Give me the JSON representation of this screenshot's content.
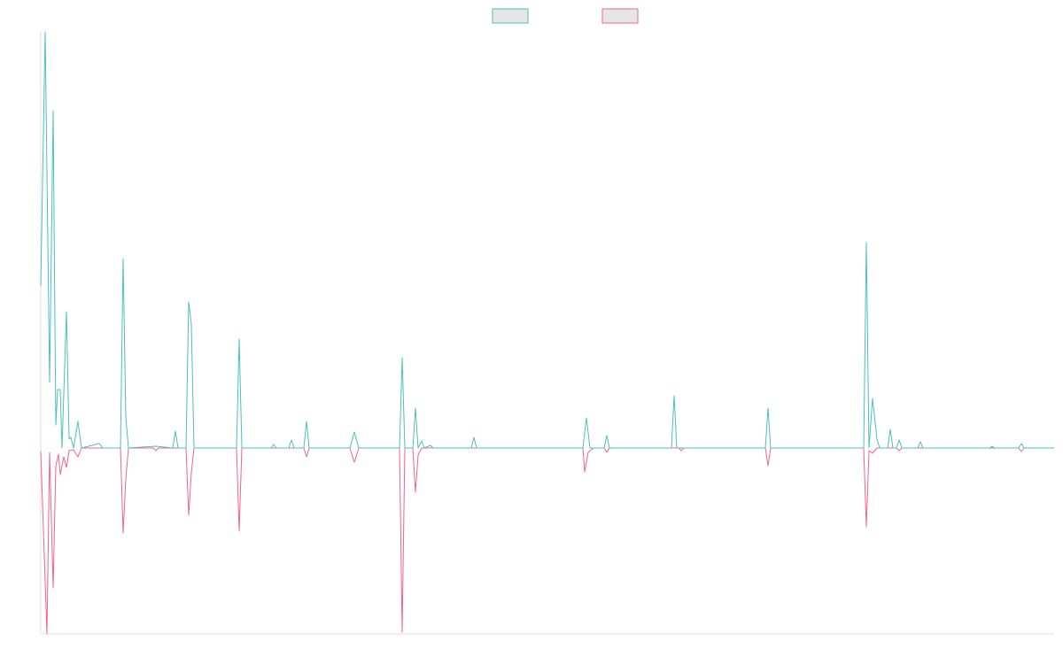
{
  "chart_data": {
    "type": "line",
    "xlim": [
      0,
      1144
    ],
    "ylim": [
      -210,
      470
    ],
    "grid": false,
    "legend": "top",
    "series": [
      {
        "color": "#4bbfbf",
        "x": [
          0,
          5,
          10,
          14,
          17,
          19,
          22,
          24,
          29,
          32,
          34,
          37,
          42,
          46,
          66,
          70,
          90,
          93,
          96,
          99,
          130,
          149,
          152,
          155,
          164,
          167,
          170,
          173,
          221,
          224,
          227,
          260,
          263,
          266,
          280,
          283,
          286,
          297,
          300,
          303,
          349,
          354,
          359,
          405,
          408,
          411,
          420,
          423,
          426,
          430,
          433,
          440,
          443,
          486,
          489,
          492,
          612,
          616,
          620,
          636,
          639,
          642,
          712,
          715,
          718,
          818,
          821,
          824,
          929,
          932,
          935,
          939,
          944,
          947,
          956,
          959,
          962,
          966,
          969,
          972,
          990,
          993,
          996,
          1071,
          1074,
          1077,
          1104,
          1107,
          1110,
          1144
        ],
        "values": [
          183,
          470,
          74,
          381,
          26,
          66,
          66,
          0,
          154,
          10,
          12,
          0,
          30,
          0,
          5,
          0,
          0,
          214,
          35,
          0,
          2,
          0,
          19,
          0,
          0,
          165,
          140,
          0,
          0,
          123,
          0,
          0,
          4,
          0,
          0,
          9,
          0,
          0,
          30,
          0,
          0,
          18,
          0,
          0,
          102,
          0,
          0,
          45,
          0,
          8,
          0,
          3,
          0,
          0,
          12,
          0,
          0,
          34,
          0,
          0,
          14,
          0,
          0,
          59,
          0,
          0,
          45,
          0,
          0,
          232,
          0,
          56,
          10,
          0,
          0,
          21,
          0,
          0,
          9,
          0,
          0,
          7,
          0,
          0,
          2,
          0,
          0,
          5,
          0,
          0
        ]
      },
      {
        "color": "#f0648c",
        "x": [
          0,
          7,
          10,
          14,
          17,
          20,
          22,
          26,
          29,
          32,
          37,
          42,
          46,
          90,
          93,
          96,
          99,
          127,
          130,
          133,
          164,
          167,
          170,
          173,
          221,
          224,
          227,
          297,
          300,
          303,
          349,
          354,
          359,
          405,
          408,
          411,
          420,
          423,
          426,
          430,
          612,
          614,
          618,
          624,
          636,
          639,
          642,
          720,
          723,
          726,
          818,
          821,
          824,
          929,
          932,
          935,
          939,
          944,
          966,
          969,
          972,
          1104,
          1107,
          1110,
          1144
        ],
        "values": [
          -4,
          -210,
          -5,
          -158,
          -20,
          -7,
          -30,
          -10,
          -22,
          -3,
          -2,
          -10,
          0,
          0,
          -96,
          -35,
          0,
          0,
          -3,
          0,
          0,
          -76,
          -28,
          0,
          0,
          -94,
          0,
          0,
          -10,
          0,
          0,
          -16,
          0,
          0,
          -208,
          0,
          0,
          -50,
          -8,
          0,
          0,
          -27,
          -5,
          0,
          0,
          -5,
          0,
          0,
          -3,
          0,
          0,
          -20,
          0,
          0,
          -89,
          -3,
          -6,
          0,
          0,
          -3,
          0,
          0,
          -4,
          0,
          0
        ]
      }
    ]
  }
}
